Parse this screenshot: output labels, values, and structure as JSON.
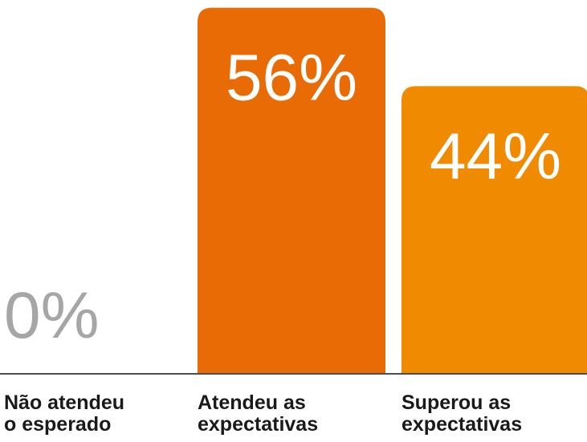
{
  "chart_data": {
    "type": "bar",
    "categories": [
      [
        "Não atendeu",
        "o esperado"
      ],
      [
        "Atendeu as",
        "expectativas"
      ],
      [
        "Superou as",
        "expectativas"
      ]
    ],
    "values": [
      0,
      56,
      44
    ],
    "value_labels": [
      "0%",
      "56%",
      "44%"
    ],
    "colors": [
      "#a6a6a6",
      "#e96b05",
      "#f08a00"
    ],
    "label_color": "#ffffff",
    "zero_label_color": "#a6a6a6"
  }
}
